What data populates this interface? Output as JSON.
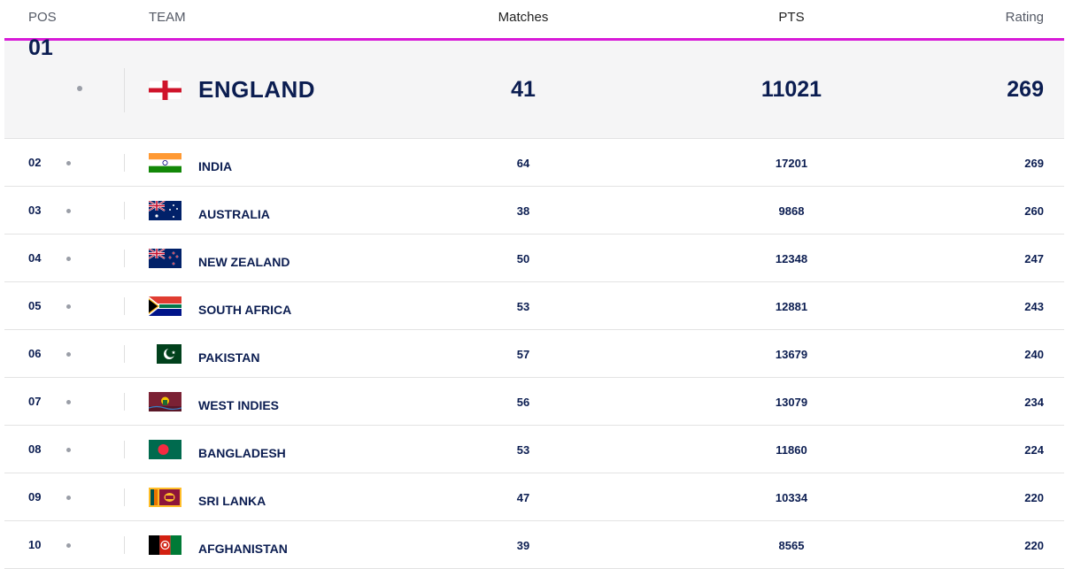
{
  "header": {
    "pos": "POS",
    "team": "TEAM",
    "matches": "Matches",
    "pts": "PTS",
    "rating": "Rating"
  },
  "rows": [
    {
      "pos": "01",
      "team": "ENGLAND",
      "matches": "41",
      "pts": "11021",
      "rating": "269",
      "flag": "england-flag-icon"
    },
    {
      "pos": "02",
      "team": "INDIA",
      "matches": "64",
      "pts": "17201",
      "rating": "269",
      "flag": "india-flag-icon"
    },
    {
      "pos": "03",
      "team": "AUSTRALIA",
      "matches": "38",
      "pts": "9868",
      "rating": "260",
      "flag": "australia-flag-icon"
    },
    {
      "pos": "04",
      "team": "NEW ZEALAND",
      "matches": "50",
      "pts": "12348",
      "rating": "247",
      "flag": "new-zealand-flag-icon"
    },
    {
      "pos": "05",
      "team": "SOUTH AFRICA",
      "matches": "53",
      "pts": "12881",
      "rating": "243",
      "flag": "south-africa-flag-icon"
    },
    {
      "pos": "06",
      "team": "PAKISTAN",
      "matches": "57",
      "pts": "13679",
      "rating": "240",
      "flag": "pakistan-flag-icon"
    },
    {
      "pos": "07",
      "team": "WEST INDIES",
      "matches": "56",
      "pts": "13079",
      "rating": "234",
      "flag": "west-indies-flag-icon"
    },
    {
      "pos": "08",
      "team": "BANGLADESH",
      "matches": "53",
      "pts": "11860",
      "rating": "224",
      "flag": "bangladesh-flag-icon"
    },
    {
      "pos": "09",
      "team": "SRI LANKA",
      "matches": "47",
      "pts": "10334",
      "rating": "220",
      "flag": "sri-lanka-flag-icon"
    },
    {
      "pos": "10",
      "team": "AFGHANISTAN",
      "matches": "39",
      "pts": "8565",
      "rating": "220",
      "flag": "afghanistan-flag-icon"
    }
  ],
  "colors": {
    "accent": "#d81ad8",
    "text": "#0b1d51",
    "top_row_bg": "#f5f5f6"
  }
}
